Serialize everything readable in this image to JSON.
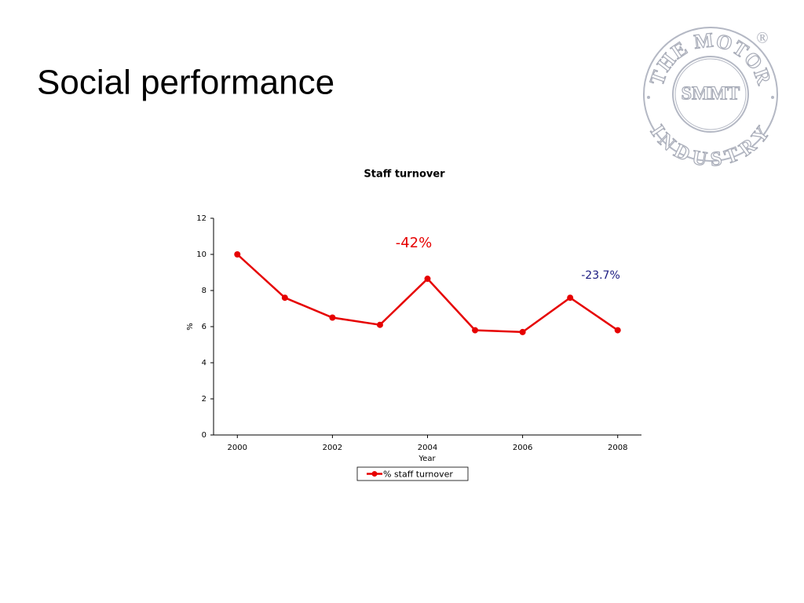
{
  "slide_title": "Social performance",
  "logo": {
    "ring_top": "THE MOTOR",
    "ring_bottom": "INDUSTRY",
    "center": "SMMT",
    "mark": "®"
  },
  "chart_data": {
    "type": "line",
    "title": "Staff turnover",
    "x_label": "Year",
    "y_label": "%",
    "x": [
      2000,
      2001,
      2002,
      2003,
      2004,
      2005,
      2006,
      2007,
      2008
    ],
    "series": [
      {
        "name": "% staff turnover",
        "color": "#e60000",
        "values": [
          10,
          7.6,
          6.5,
          6.1,
          8.65,
          5.8,
          5.7,
          7.6,
          5.8
        ]
      }
    ],
    "xlim": [
      1999.5,
      2008.5
    ],
    "xticks": [
      2000,
      2002,
      2004,
      2006,
      2008
    ],
    "ylim": [
      0,
      12
    ],
    "yticks": [
      0,
      2,
      4,
      6,
      8,
      10,
      12
    ],
    "grid": false,
    "legend": "bottom",
    "annotations": [
      {
        "text": "-42%",
        "color": "#e60000"
      },
      {
        "text": "-23.7%",
        "color": "#1a1a80"
      }
    ]
  }
}
